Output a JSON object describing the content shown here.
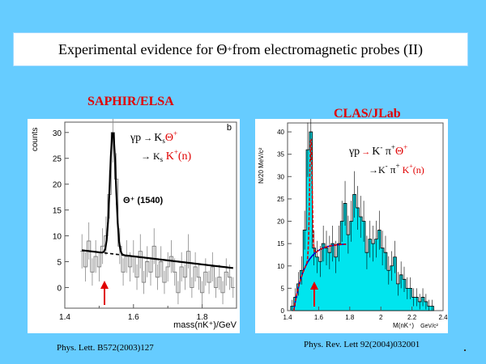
{
  "slide": {
    "title_pre": "Experimental evidence for Θ",
    "title_sup": "+",
    "title_post": " from electromagnetic probes (II)",
    "left_label": "SAPHIR/ELSA",
    "right_label": "CLAS/JLab",
    "left_ref": "Phys. Lett. B572(2003)127",
    "right_ref": "Phys. Rev. Lett 92(2004)032001"
  },
  "left_plot": {
    "ylabel": "counts",
    "xlabel": "mass(nK⁺)/GeV",
    "corner_label": "b",
    "peak_label": "Θ⁺ (1540)",
    "yticks": [
      "30",
      "25",
      "20",
      "15",
      "10",
      "5",
      "0"
    ],
    "xticks": [
      "1.4",
      "1.6",
      "1.8"
    ],
    "reaction1_a": "γp",
    "reaction1_b": "K",
    "reaction1_c": "s",
    "reaction1_d": "Θ",
    "reaction1_e": "+",
    "reaction2_a": "→ K",
    "reaction2_b": "s",
    "reaction2_c": " K",
    "reaction2_d": "+",
    "reaction2_e": "(n)"
  },
  "right_plot": {
    "ylabel": "N/20 MeV/c²",
    "xlabel": "M(nK⁺)",
    "xunit": "GeV/c²",
    "yticks": [
      "40",
      "35",
      "30",
      "25",
      "20",
      "15",
      "10",
      "5",
      "0"
    ],
    "xticks": [
      "1.4",
      "1.6",
      "1.8",
      "2",
      "2.2",
      "2.4"
    ],
    "reaction1_a": "γp",
    "reaction1_b": "K",
    "reaction1_c": "-",
    "reaction1_d": " π",
    "reaction1_e": "+",
    "reaction1_f": "Θ",
    "reaction1_g": "+",
    "reaction2_a": "→K",
    "reaction2_b": "-",
    "reaction2_c": " π",
    "reaction2_d": "+",
    "reaction2_e": " K",
    "reaction2_f": "+",
    "reaction2_g": "(n)"
  },
  "colors": {
    "background": "#66ccff",
    "label_red": "#e00000",
    "histogram_fill": "#00e5ee",
    "arrow": "#e00000"
  },
  "chart_data": [
    {
      "type": "bar",
      "title": "",
      "xlabel": "mass(nK⁺)/GeV",
      "ylabel": "counts",
      "xlim": [
        1.4,
        1.9
      ],
      "ylim": [
        -4,
        32
      ],
      "x": [
        1.45,
        1.46,
        1.47,
        1.48,
        1.49,
        1.5,
        1.51,
        1.52,
        1.53,
        1.54,
        1.55,
        1.56,
        1.57,
        1.58,
        1.59,
        1.6,
        1.61,
        1.62,
        1.63,
        1.64,
        1.65,
        1.66,
        1.67,
        1.68,
        1.69,
        1.7,
        1.71,
        1.72,
        1.73,
        1.74,
        1.75,
        1.76,
        1.77,
        1.78,
        1.79,
        1.8,
        1.81,
        1.82,
        1.83,
        1.84,
        1.85,
        1.86,
        1.87,
        1.88,
        1.89
      ],
      "values": [
        7,
        4,
        9,
        3,
        6,
        4,
        8,
        10,
        18,
        30,
        21,
        8,
        3,
        6,
        4,
        6,
        2,
        7,
        1,
        5,
        3,
        8,
        2,
        5,
        1,
        4,
        6,
        3,
        -1,
        4,
        2,
        7,
        0,
        4,
        2,
        -1,
        3,
        1,
        4,
        0,
        2,
        -1,
        3,
        2,
        0
      ],
      "peak_mass": 1.54
    },
    {
      "type": "bar",
      "title": "",
      "xlabel": "M(nK⁺) GeV/c²",
      "ylabel": "N/20 MeV/c²",
      "xlim": [
        1.4,
        2.4
      ],
      "ylim": [
        0,
        42
      ],
      "x": [
        1.43,
        1.45,
        1.47,
        1.49,
        1.51,
        1.53,
        1.55,
        1.57,
        1.59,
        1.61,
        1.63,
        1.65,
        1.67,
        1.69,
        1.71,
        1.73,
        1.75,
        1.77,
        1.79,
        1.81,
        1.83,
        1.85,
        1.87,
        1.89,
        1.91,
        1.93,
        1.95,
        1.97,
        1.99,
        2.01,
        2.03,
        2.05,
        2.07,
        2.09,
        2.11,
        2.13,
        2.15,
        2.17,
        2.19,
        2.21,
        2.23,
        2.25,
        2.27,
        2.29,
        2.31,
        2.33
      ],
      "values": [
        1,
        3,
        6,
        9,
        18,
        36,
        40,
        14,
        12,
        11,
        15,
        14,
        13,
        15,
        12,
        15,
        20,
        24,
        17,
        20,
        26,
        23,
        21,
        20,
        13,
        16,
        15,
        16,
        18,
        14,
        13,
        9,
        10,
        12,
        6,
        8,
        7,
        5,
        5,
        3,
        3,
        2,
        3,
        2,
        1,
        1
      ],
      "peak_mass": 1.55
    }
  ]
}
